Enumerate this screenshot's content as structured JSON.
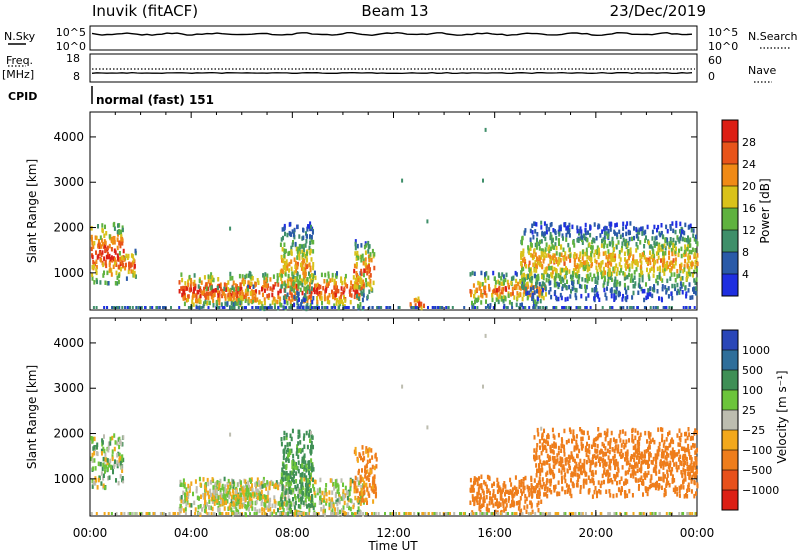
{
  "header": {
    "station": "Inuvik (fitACF)",
    "beam": "Beam 13",
    "date": "23/Dec/2019"
  },
  "top_panels": {
    "nsky_label": "N.Sky",
    "nsky_ticks": [
      "10^5",
      "10^0"
    ],
    "nsearch_label": "N.Search",
    "nsearch_ticks": [
      "10^5",
      "10^0"
    ],
    "freq_label": "Freq.",
    "freq_unit": "[MHz]",
    "freq_ticks": [
      "18",
      "8"
    ],
    "nave_label": "Nave",
    "nave_ticks": [
      "60",
      "0"
    ],
    "cpid_label": "CPID",
    "cpid_value": "normal (fast) 151"
  },
  "x_axis": {
    "label": "Time UT",
    "ticks": [
      "00:00",
      "04:00",
      "08:00",
      "12:00",
      "16:00",
      "20:00",
      "00:00"
    ],
    "hours": [
      0,
      4,
      8,
      12,
      16,
      20,
      24
    ]
  },
  "colorbars": {
    "power": {
      "label": "Power [dB]",
      "ticks": [
        "4",
        "8",
        "12",
        "16",
        "20",
        "24",
        "28"
      ],
      "colors": [
        "#1f2fe0",
        "#2a5aa8",
        "#3f8f6a",
        "#5fb23f",
        "#d9c21a",
        "#f08a16",
        "#e8541a",
        "#dc1f14"
      ]
    },
    "velocity": {
      "label": "Velocity [m s⁻¹]",
      "ticks": [
        "1000",
        "500",
        "100",
        "25",
        "−25",
        "−100",
        "−500",
        "−1000"
      ],
      "colors": [
        "#2a46b8",
        "#2f6e9a",
        "#3f8f55",
        "#6cc43a",
        "#bdbdb0",
        "#f2a81b",
        "#ee7d1b",
        "#e8501a",
        "#dc1f14"
      ]
    }
  },
  "chart_data": [
    {
      "type": "heatmap",
      "title": "Power",
      "ylabel": "Slant Range [km]",
      "yticks": [
        1000,
        2000,
        3000,
        4000
      ],
      "ylim": [
        180,
        4550
      ],
      "xlim": [
        0,
        24
      ],
      "regions": [
        {
          "t0": 0.0,
          "t1": 1.3,
          "r0": 750,
          "r1": 2100,
          "peak": 28
        },
        {
          "t0": 1.1,
          "t1": 1.8,
          "r0": 850,
          "r1": 1500,
          "peak": 26
        },
        {
          "t0": 3.5,
          "t1": 10.8,
          "r0": 200,
          "r1": 1000,
          "peak": 28
        },
        {
          "t0": 4.2,
          "t1": 6.5,
          "r0": 300,
          "r1": 700,
          "peak": 26
        },
        {
          "t0": 7.5,
          "t1": 8.8,
          "r0": 200,
          "r1": 2100,
          "peak": 20
        },
        {
          "t0": 10.4,
          "t1": 11.2,
          "r0": 400,
          "r1": 1700,
          "peak": 24
        },
        {
          "t0": 12.6,
          "t1": 13.2,
          "r0": 200,
          "r1": 450,
          "peak": 30
        },
        {
          "t0": 15.0,
          "t1": 18.0,
          "r0": 250,
          "r1": 1000,
          "peak": 24
        },
        {
          "t0": 17.0,
          "t1": 24.0,
          "r0": 400,
          "r1": 2100,
          "peak": 20
        }
      ]
    },
    {
      "type": "heatmap",
      "title": "Velocity",
      "ylabel": "Slant Range [km]",
      "yticks": [
        1000,
        2000,
        3000,
        4000
      ],
      "ylim": [
        180,
        4550
      ],
      "xlim": [
        0,
        24
      ],
      "regions": [
        {
          "t0": 0.0,
          "t1": 1.3,
          "r0": 800,
          "r1": 2000,
          "v": 50
        },
        {
          "t0": 3.5,
          "t1": 10.8,
          "r0": 200,
          "r1": 1000,
          "v": 20
        },
        {
          "t0": 4.5,
          "t1": 7.0,
          "r0": 300,
          "r1": 950,
          "v": 0
        },
        {
          "t0": 7.5,
          "t1": 8.8,
          "r0": 300,
          "r1": 2100,
          "v": 150
        },
        {
          "t0": 10.4,
          "t1": 11.3,
          "r0": 400,
          "r1": 1700,
          "v": -150
        },
        {
          "t0": 15.0,
          "t1": 17.8,
          "r0": 250,
          "r1": 1050,
          "v": -300
        },
        {
          "t0": 17.5,
          "t1": 24.0,
          "r0": 600,
          "r1": 2100,
          "v": -300
        }
      ]
    }
  ]
}
